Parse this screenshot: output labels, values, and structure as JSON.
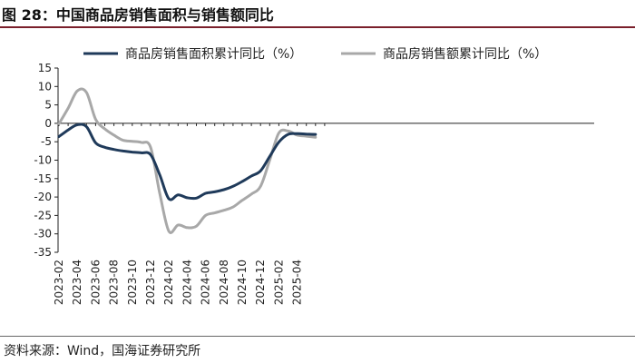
{
  "figure": {
    "title": "图 28：中国商品房销售面积与销售额同比",
    "source": "资料来源：Wind，国海证券研究所"
  },
  "colors": {
    "series_area": "#1f3a5a",
    "series_amount": "#a8a8a8",
    "title_rule": "#7a1f2b"
  },
  "chart_data": {
    "type": "line",
    "xlabel": "",
    "ylabel": "",
    "ylim": [
      -35,
      15
    ],
    "yticks": [
      15,
      10,
      5,
      0,
      -5,
      -10,
      -15,
      -20,
      -25,
      -30,
      -35
    ],
    "x_tick_labels": [
      "2023-02",
      "2023-04",
      "2023-06",
      "2023-08",
      "2023-10",
      "2023-12",
      "2024-02",
      "2024-04",
      "2024-06",
      "2024-08",
      "2024-10",
      "2024-12",
      "2025-02",
      "2025-04"
    ],
    "grid": false,
    "legend_position": "top",
    "series": [
      {
        "name": "商品房销售面积累计同比（%）",
        "x": [
          "2023-02",
          "2023-03",
          "2023-04",
          "2023-05",
          "2023-06",
          "2023-07",
          "2023-08",
          "2023-09",
          "2023-10",
          "2023-11",
          "2023-12",
          "2024-01",
          "2024-02",
          "2024-03",
          "2024-04",
          "2024-05",
          "2024-06",
          "2024-07",
          "2024-08",
          "2024-09",
          "2024-10",
          "2024-11",
          "2024-12",
          "2025-01",
          "2025-02",
          "2025-03",
          "2025-04",
          "2025-05",
          "2025-06"
        ],
        "values": [
          -3.6,
          -1.8,
          -0.4,
          -0.9,
          -5.3,
          -6.5,
          -7.1,
          -7.5,
          -7.8,
          -8.0,
          -8.5,
          -14.0,
          -20.5,
          -19.4,
          -20.2,
          -20.3,
          -19.0,
          -18.6,
          -18.0,
          -17.1,
          -15.8,
          -14.3,
          -12.9,
          -9.0,
          -5.1,
          -3.0,
          -2.8,
          -2.9,
          -3.0
        ]
      },
      {
        "name": "商品房销售额累计同比（%）",
        "x": [
          "2023-02",
          "2023-03",
          "2023-04",
          "2023-05",
          "2023-06",
          "2023-07",
          "2023-08",
          "2023-09",
          "2023-10",
          "2023-11",
          "2023-12",
          "2024-01",
          "2024-02",
          "2024-03",
          "2024-04",
          "2024-05",
          "2024-06",
          "2024-07",
          "2024-08",
          "2024-09",
          "2024-10",
          "2024-11",
          "2024-12",
          "2025-01",
          "2025-02",
          "2025-03",
          "2025-04",
          "2025-05",
          "2025-06"
        ],
        "values": [
          -0.1,
          4.1,
          8.8,
          8.4,
          1.1,
          -1.5,
          -3.2,
          -4.6,
          -4.9,
          -5.2,
          -6.5,
          -19.0,
          -29.3,
          -27.6,
          -28.3,
          -27.9,
          -25.0,
          -24.3,
          -23.6,
          -22.7,
          -20.9,
          -19.2,
          -17.1,
          -10.0,
          -2.6,
          -2.1,
          -3.2,
          -3.5,
          -3.8
        ]
      }
    ]
  }
}
